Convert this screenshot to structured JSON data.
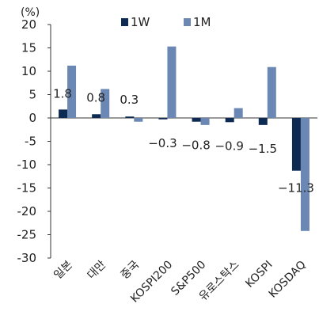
{
  "chart_data": {
    "type": "bar",
    "unit": "(%)",
    "categories": [
      "일본",
      "대만",
      "중국",
      "KOSPI200",
      "S&P500",
      "유로스탁스",
      "KOSPI",
      "KOSDAQ"
    ],
    "series": [
      {
        "name": "1W",
        "color": "#0d2a52",
        "values": [
          1.8,
          0.8,
          0.3,
          -0.3,
          -0.8,
          -0.9,
          -1.5,
          -11.3
        ]
      },
      {
        "name": "1M",
        "color": "#6b87b3",
        "values": [
          11.2,
          6.2,
          -0.8,
          15.3,
          -1.5,
          2.1,
          10.9,
          -24.2
        ]
      }
    ],
    "data_labels": [
      "1.8",
      "0.8",
      "0.3",
      "-0.3",
      "-0.8",
      "-0.9",
      "-1.5",
      "-11.3"
    ],
    "yticks": [
      "20",
      "15",
      "10",
      "5",
      "0",
      "-5",
      "-10",
      "-15",
      "-20",
      "-25",
      "-30"
    ],
    "ylim": [
      -30,
      20
    ],
    "legend_position": "top",
    "grid": false
  }
}
